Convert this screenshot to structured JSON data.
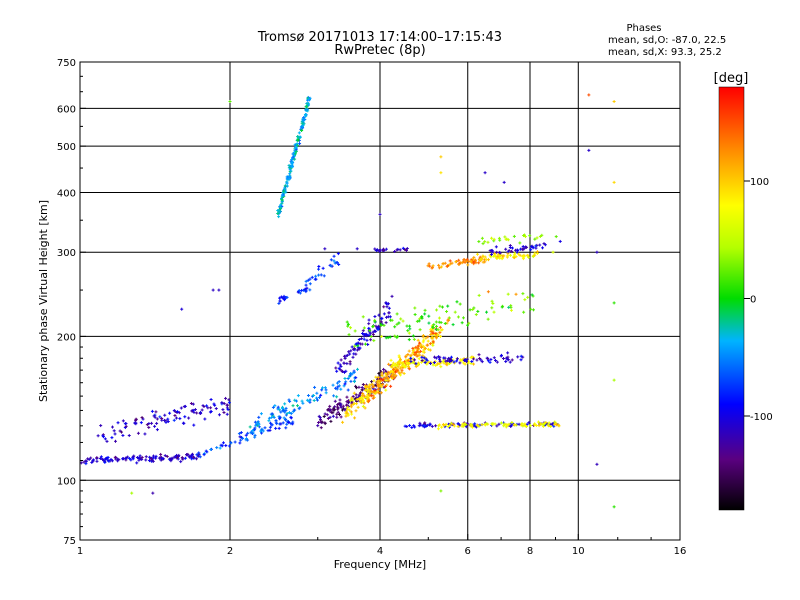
{
  "chart_data": {
    "type": "scatter",
    "title_line1": "Tromsø 20171013 17:14:00–17:15:43",
    "title_line2": "RwPretec (8p)",
    "xlabel": "Frequency [MHz]",
    "ylabel": "Stationary phase Virtual Height [km]",
    "x_scale": "log2",
    "y_scale": "log",
    "xlim": [
      1,
      16
    ],
    "ylim": [
      75,
      750
    ],
    "x_ticks": [
      {
        "v": 1,
        "label": "1"
      },
      {
        "v": 2,
        "label": "2"
      },
      {
        "v": 4,
        "label": "4"
      },
      {
        "v": 6,
        "label": "6"
      },
      {
        "v": 8,
        "label": "8"
      },
      {
        "v": 10,
        "label": "10"
      },
      {
        "v": 16,
        "label": "16"
      }
    ],
    "x_grid": [
      2,
      4,
      6,
      8,
      10
    ],
    "y_ticks": [
      {
        "v": 75,
        "label": "75"
      },
      {
        "v": 100,
        "label": "100"
      },
      {
        "v": 200,
        "label": "200"
      },
      {
        "v": 300,
        "label": "300"
      },
      {
        "v": 400,
        "label": "400"
      },
      {
        "v": 500,
        "label": "500"
      },
      {
        "v": 600,
        "label": "600"
      },
      {
        "v": 750,
        "label": "750"
      }
    ],
    "y_grid": [
      100,
      200,
      300,
      400,
      500,
      600
    ],
    "phases_header": "Phases",
    "phases_O": "mean, sd,O: -87.0, 22.5",
    "phases_X": "mean, sd,X:  93.3, 25.2",
    "colorbar": {
      "title": "[deg]",
      "min": -180,
      "max": 180,
      "ticks": [
        {
          "v": 100,
          "label": "100"
        },
        {
          "v": 0,
          "label": "0"
        },
        {
          "v": -100,
          "label": "-100"
        }
      ]
    },
    "traces": [
      {
        "name": "low-E-trace",
        "x": [
          1.0,
          1.75
        ],
        "y": [
          110,
          112
        ],
        "phase": -110,
        "jitter": 0.015,
        "n": 130
      },
      {
        "name": "E-upper-band",
        "x": [
          1.1,
          2.0
        ],
        "y": [
          125,
          145
        ],
        "phase": -112,
        "jitter": 0.05,
        "n": 110
      },
      {
        "name": "E-to-F-rise",
        "x": [
          1.7,
          2.7
        ],
        "y": [
          112,
          135
        ],
        "phase": -70,
        "jitter": 0.03,
        "n": 70
      },
      {
        "name": "F-low-trace",
        "x": [
          2.2,
          3.6
        ],
        "y": [
          130,
          165
        ],
        "phase": -50,
        "jitter": 0.04,
        "n": 110
      },
      {
        "name": "F-purple-trace",
        "x": [
          3.0,
          4.3
        ],
        "y": [
          132,
          170
        ],
        "phase": -138,
        "jitter": 0.04,
        "n": 150
      },
      {
        "name": "F-ascending-yellow",
        "x": [
          3.4,
          5.3
        ],
        "y": [
          138,
          205
        ],
        "phase": 95,
        "jitter": 0.05,
        "n": 220
      },
      {
        "name": "F-ascending-orange",
        "x": [
          3.8,
          5.5
        ],
        "y": [
          150,
          215
        ],
        "phase": 130,
        "jitter": 0.04,
        "n": 90
      },
      {
        "name": "F-blue-patch",
        "x": [
          3.3,
          4.2
        ],
        "y": [
          170,
          230
        ],
        "phase": -108,
        "jitter": 0.05,
        "n": 100
      },
      {
        "name": "mid-band-yellow",
        "x": [
          4.2,
          6.2
        ],
        "y": [
          175,
          178
        ],
        "phase": 85,
        "jitter": 0.02,
        "n": 90
      },
      {
        "name": "mid-band-blue",
        "x": [
          4.6,
          7.8
        ],
        "y": [
          178,
          180
        ],
        "phase": -108,
        "jitter": 0.02,
        "n": 70
      },
      {
        "name": "low-band-O",
        "x": [
          4.5,
          9.2
        ],
        "y": [
          130,
          131
        ],
        "phase": -105,
        "jitter": 0.01,
        "n": 90
      },
      {
        "name": "low-band-X",
        "x": [
          5.2,
          9.2
        ],
        "y": [
          130,
          131
        ],
        "phase": 78,
        "jitter": 0.01,
        "n": 80
      },
      {
        "name": "F2-band-orange",
        "x": [
          5.0,
          6.5
        ],
        "y": [
          280,
          290
        ],
        "phase": 125,
        "jitter": 0.015,
        "n": 60
      },
      {
        "name": "F2-band-yellow",
        "x": [
          6.2,
          8.3
        ],
        "y": [
          292,
          296
        ],
        "phase": 90,
        "jitter": 0.015,
        "n": 55
      },
      {
        "name": "F2-band-blue",
        "x": [
          6.5,
          8.6
        ],
        "y": [
          300,
          310
        ],
        "phase": -105,
        "jitter": 0.02,
        "n": 40
      },
      {
        "name": "F2-top-cyan",
        "x": [
          6.3,
          9.0
        ],
        "y": [
          318,
          325
        ],
        "phase": 40,
        "jitter": 0.02,
        "n": 25
      },
      {
        "name": "F2-left-blue",
        "x": [
          3.9,
          4.6
        ],
        "y": [
          302,
          304
        ],
        "phase": -112,
        "jitter": 0.01,
        "n": 20
      },
      {
        "name": "spread-cloud-mid",
        "x": [
          3.4,
          8.2
        ],
        "y": [
          200,
          240
        ],
        "phase": 20,
        "jitter": 0.08,
        "n": 110
      },
      {
        "name": "high-echo-column",
        "x": [
          2.5,
          2.9
        ],
        "y": [
          360,
          640
        ],
        "phase": -35,
        "jitter": 0.02,
        "n": 170
      },
      {
        "name": "F1-patch",
        "x": [
          2.5,
          2.9
        ],
        "y": [
          238,
          252
        ],
        "phase": -85,
        "jitter": 0.015,
        "n": 25
      },
      {
        "name": "diagonal-mid",
        "x": [
          2.8,
          3.3
        ],
        "y": [
          255,
          290
        ],
        "phase": -70,
        "jitter": 0.03,
        "n": 25
      }
    ],
    "extra_points": [
      {
        "x": 1.35,
        "y": 125,
        "phase": -110
      },
      {
        "x": 1.27,
        "y": 94,
        "phase": 40
      },
      {
        "x": 1.4,
        "y": 94,
        "phase": -120
      },
      {
        "x": 1.85,
        "y": 250,
        "phase": -112
      },
      {
        "x": 1.9,
        "y": 250,
        "phase": -112
      },
      {
        "x": 1.6,
        "y": 228,
        "phase": -105
      },
      {
        "x": 2.0,
        "y": 620,
        "phase": 20
      },
      {
        "x": 3.1,
        "y": 305,
        "phase": -112
      },
      {
        "x": 3.3,
        "y": 298,
        "phase": -90
      },
      {
        "x": 3.6,
        "y": 305,
        "phase": -110
      },
      {
        "x": 4.0,
        "y": 360,
        "phase": -112
      },
      {
        "x": 5.3,
        "y": 475,
        "phase": 100
      },
      {
        "x": 5.3,
        "y": 440,
        "phase": 90
      },
      {
        "x": 5.3,
        "y": 95,
        "phase": 30
      },
      {
        "x": 6.5,
        "y": 440,
        "phase": -110
      },
      {
        "x": 7.1,
        "y": 420,
        "phase": -110
      },
      {
        "x": 6.6,
        "y": 248,
        "phase": 130
      },
      {
        "x": 7.5,
        "y": 245,
        "phase": 120
      },
      {
        "x": 10.5,
        "y": 640,
        "phase": 150
      },
      {
        "x": 10.5,
        "y": 490,
        "phase": -110
      },
      {
        "x": 10.9,
        "y": 300,
        "phase": -112
      },
      {
        "x": 10.9,
        "y": 108,
        "phase": -115
      },
      {
        "x": 11.8,
        "y": 620,
        "phase": 100
      },
      {
        "x": 11.8,
        "y": 420,
        "phase": 95
      },
      {
        "x": 11.8,
        "y": 235,
        "phase": 10
      },
      {
        "x": 11.8,
        "y": 162,
        "phase": 40
      },
      {
        "x": 11.8,
        "y": 88,
        "phase": 10
      },
      {
        "x": 8.9,
        "y": 300,
        "phase": 60
      },
      {
        "x": 9.2,
        "y": 316,
        "phase": -100
      }
    ]
  }
}
